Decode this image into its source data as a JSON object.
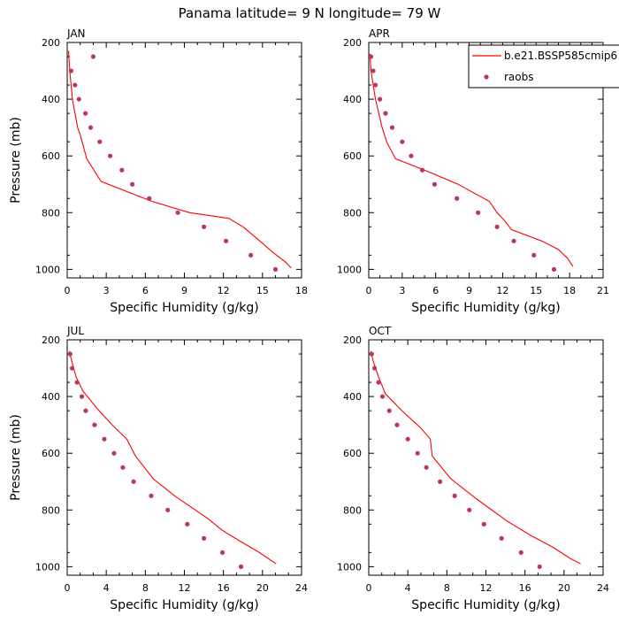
{
  "title": "Panama  latitude= 9 N longitude= 79 W",
  "colors": {
    "model": "#ff0000",
    "obs": "#c0365a",
    "axis": "#000000"
  },
  "legend": {
    "model_label": "b.e21.BSSP585cmip6",
    "obs_label": "raobs",
    "placement": "top-right of APR panel"
  },
  "chart_data": [
    {
      "type": "line",
      "panel": "JAN",
      "title": "JAN",
      "xlabel": "Specific Humidity (g/kg)",
      "ylabel": "Pressure (mb)",
      "xlim": [
        0,
        18
      ],
      "ylim": [
        200,
        1030
      ],
      "y_reversed": true,
      "xticks": [
        0,
        3,
        6,
        9,
        12,
        15,
        18
      ],
      "yticks": [
        200,
        400,
        600,
        800,
        1000
      ],
      "series": [
        {
          "name": "b.e21.BSSP585cmip6",
          "kind": "line",
          "points": [
            [
              0.1,
              230
            ],
            [
              0.2,
              300
            ],
            [
              0.3,
              350
            ],
            [
              0.4,
              400
            ],
            [
              0.6,
              450
            ],
            [
              0.8,
              500
            ],
            [
              1.0,
              525
            ],
            [
              1.5,
              610
            ],
            [
              2.6,
              690
            ],
            [
              6.5,
              760
            ],
            [
              9.4,
              800
            ],
            [
              12.4,
              820
            ],
            [
              13.5,
              850
            ],
            [
              14.8,
              900
            ],
            [
              15.8,
              940
            ],
            [
              16.8,
              975
            ],
            [
              17.2,
              995
            ]
          ]
        },
        {
          "name": "raobs",
          "kind": "scatter",
          "points": [
            [
              2.0,
              250
            ],
            [
              0.3,
              300
            ],
            [
              0.6,
              350
            ],
            [
              0.9,
              400
            ],
            [
              1.4,
              450
            ],
            [
              1.8,
              500
            ],
            [
              2.5,
              550
            ],
            [
              3.3,
              600
            ],
            [
              4.2,
              650
            ],
            [
              5.0,
              700
            ],
            [
              6.3,
              750
            ],
            [
              8.5,
              800
            ],
            [
              10.5,
              850
            ],
            [
              12.2,
              900
            ],
            [
              14.1,
              950
            ],
            [
              16.0,
              1000
            ]
          ]
        }
      ]
    },
    {
      "type": "line",
      "panel": "APR",
      "title": "APR",
      "xlabel": "Specific Humidity (g/kg)",
      "ylabel": "",
      "xlim": [
        0,
        21
      ],
      "ylim": [
        200,
        1030
      ],
      "y_reversed": true,
      "xticks": [
        0,
        3,
        6,
        9,
        12,
        15,
        18,
        21
      ],
      "yticks": [
        200,
        400,
        600,
        800,
        1000
      ],
      "series": [
        {
          "name": "b.e21.BSSP585cmip6",
          "kind": "line",
          "points": [
            [
              0.1,
              240
            ],
            [
              0.2,
              300
            ],
            [
              0.4,
              350
            ],
            [
              0.6,
              400
            ],
            [
              0.9,
              450
            ],
            [
              1.2,
              500
            ],
            [
              1.6,
              550
            ],
            [
              2.4,
              610
            ],
            [
              5.0,
              650
            ],
            [
              8.0,
              700
            ],
            [
              10.8,
              760
            ],
            [
              11.5,
              800
            ],
            [
              12.2,
              830
            ],
            [
              12.8,
              860
            ],
            [
              15.5,
              900
            ],
            [
              17.0,
              930
            ],
            [
              17.8,
              960
            ],
            [
              18.3,
              990
            ]
          ]
        },
        {
          "name": "raobs",
          "kind": "scatter",
          "points": [
            [
              0.2,
              250
            ],
            [
              0.4,
              300
            ],
            [
              0.6,
              350
            ],
            [
              1.0,
              400
            ],
            [
              1.5,
              450
            ],
            [
              2.1,
              500
            ],
            [
              3.0,
              550
            ],
            [
              3.8,
              600
            ],
            [
              4.8,
              650
            ],
            [
              5.9,
              700
            ],
            [
              7.9,
              750
            ],
            [
              9.8,
              800
            ],
            [
              11.5,
              850
            ],
            [
              13.0,
              900
            ],
            [
              14.8,
              950
            ],
            [
              16.6,
              1000
            ]
          ]
        }
      ]
    },
    {
      "type": "line",
      "panel": "JUL",
      "title": "JUL",
      "xlabel": "Specific Humidity (g/kg)",
      "ylabel": "Pressure (mb)",
      "xlim": [
        0,
        24
      ],
      "ylim": [
        200,
        1030
      ],
      "y_reversed": true,
      "xticks": [
        0,
        4,
        8,
        12,
        16,
        20,
        24
      ],
      "yticks": [
        200,
        400,
        600,
        800,
        1000
      ],
      "series": [
        {
          "name": "b.e21.BSSP585cmip6",
          "kind": "line",
          "points": [
            [
              0.2,
              240
            ],
            [
              0.5,
              280
            ],
            [
              0.9,
              330
            ],
            [
              1.6,
              380
            ],
            [
              3.0,
              440
            ],
            [
              4.6,
              500
            ],
            [
              6.1,
              550
            ],
            [
              7.0,
              610
            ],
            [
              8.8,
              690
            ],
            [
              11.0,
              750
            ],
            [
              14.4,
              830
            ],
            [
              15.8,
              870
            ],
            [
              17.7,
              910
            ],
            [
              19.7,
              950
            ],
            [
              21.4,
              990
            ]
          ]
        },
        {
          "name": "raobs",
          "kind": "scatter",
          "points": [
            [
              0.3,
              250
            ],
            [
              0.5,
              300
            ],
            [
              1.0,
              350
            ],
            [
              1.5,
              400
            ],
            [
              1.9,
              450
            ],
            [
              2.8,
              500
            ],
            [
              3.8,
              550
            ],
            [
              4.8,
              600
            ],
            [
              5.7,
              650
            ],
            [
              6.8,
              700
            ],
            [
              8.6,
              750
            ],
            [
              10.3,
              800
            ],
            [
              12.3,
              850
            ],
            [
              14.0,
              900
            ],
            [
              15.9,
              950
            ],
            [
              17.8,
              1000
            ]
          ]
        }
      ]
    },
    {
      "type": "line",
      "panel": "OCT",
      "title": "OCT",
      "xlabel": "Specific Humidity (g/kg)",
      "ylabel": "",
      "xlim": [
        0,
        24
      ],
      "ylim": [
        200,
        1030
      ],
      "y_reversed": true,
      "xticks": [
        0,
        4,
        8,
        12,
        16,
        20,
        24
      ],
      "yticks": [
        200,
        400,
        600,
        800,
        1000
      ],
      "series": [
        {
          "name": "b.e21.BSSP585cmip6",
          "kind": "line",
          "points": [
            [
              0.2,
              240
            ],
            [
              0.5,
              280
            ],
            [
              1.0,
              330
            ],
            [
              1.7,
              390
            ],
            [
              3.4,
              450
            ],
            [
              5.3,
              510
            ],
            [
              6.3,
              550
            ],
            [
              6.5,
              610
            ],
            [
              8.4,
              690
            ],
            [
              11.0,
              760
            ],
            [
              14.2,
              840
            ],
            [
              16.6,
              890
            ],
            [
              18.8,
              930
            ],
            [
              20.6,
              970
            ],
            [
              21.7,
              990
            ]
          ]
        },
        {
          "name": "raobs",
          "kind": "scatter",
          "points": [
            [
              0.3,
              250
            ],
            [
              0.6,
              300
            ],
            [
              1.0,
              350
            ],
            [
              1.4,
              400
            ],
            [
              2.1,
              450
            ],
            [
              2.9,
              500
            ],
            [
              4.0,
              550
            ],
            [
              5.0,
              600
            ],
            [
              5.9,
              650
            ],
            [
              7.3,
              700
            ],
            [
              8.8,
              750
            ],
            [
              10.3,
              800
            ],
            [
              11.8,
              850
            ],
            [
              13.6,
              900
            ],
            [
              15.6,
              950
            ],
            [
              17.5,
              1000
            ]
          ]
        }
      ]
    }
  ]
}
